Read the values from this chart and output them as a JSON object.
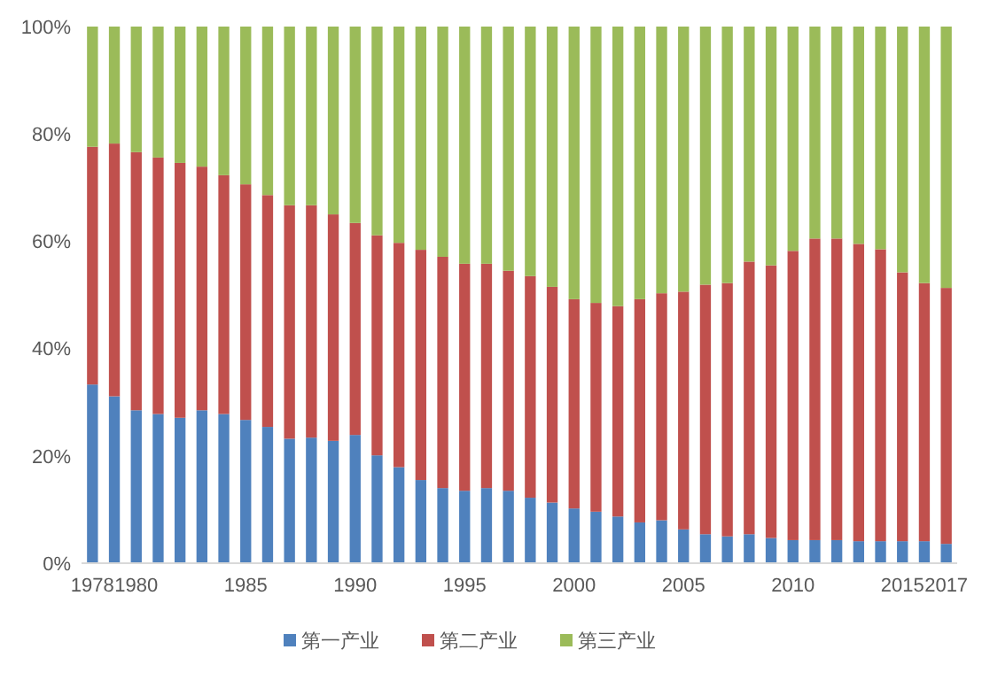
{
  "chart_data": {
    "type": "bar",
    "stacked": true,
    "categories": [
      "1978",
      null,
      "1980",
      null,
      null,
      null,
      null,
      "1985",
      null,
      null,
      null,
      null,
      "1990",
      null,
      null,
      null,
      null,
      "1995",
      null,
      null,
      null,
      null,
      "2000",
      null,
      null,
      null,
      null,
      "2005",
      null,
      null,
      null,
      null,
      "2010",
      null,
      null,
      null,
      null,
      "2015",
      null,
      "2017"
    ],
    "series": [
      {
        "name": "第一产业",
        "color": "#4f81bd",
        "values": [
          33.3,
          31.1,
          28.5,
          27.8,
          27.1,
          28.5,
          27.8,
          26.7,
          25.4,
          23.2,
          23.4,
          22.8,
          23.9,
          20.1,
          17.9,
          15.5,
          14.0,
          13.5,
          14.0,
          13.5,
          12.2,
          11.3,
          10.2,
          9.6,
          8.7,
          7.6,
          8.0,
          6.3,
          5.4,
          5.0,
          5.4,
          4.7,
          4.3,
          4.3,
          4.3,
          4.1,
          4.1,
          4.1,
          4.1,
          3.6
        ]
      },
      {
        "name": "第二产业",
        "color": "#c0504d",
        "values": [
          44.3,
          47.1,
          48.1,
          47.8,
          47.5,
          45.4,
          44.5,
          43.9,
          43.2,
          43.5,
          43.3,
          42.2,
          39.5,
          41.0,
          41.8,
          42.9,
          43.1,
          42.3,
          41.8,
          41.0,
          41.3,
          40.2,
          39.0,
          38.9,
          39.2,
          41.6,
          42.3,
          44.3,
          46.5,
          47.2,
          50.8,
          50.8,
          53.9,
          56.2,
          56.2,
          55.4,
          54.4,
          50.1,
          48.1,
          47.7
        ]
      },
      {
        "name": "第三产业",
        "color": "#9bbb59",
        "values": [
          22.4,
          21.8,
          23.4,
          24.4,
          25.4,
          26.1,
          27.7,
          29.4,
          31.4,
          33.3,
          33.3,
          35.0,
          36.6,
          38.9,
          40.3,
          41.6,
          42.9,
          44.2,
          44.2,
          45.5,
          46.5,
          48.5,
          50.8,
          51.5,
          52.1,
          50.8,
          49.7,
          49.4,
          48.1,
          47.8,
          43.8,
          44.5,
          41.8,
          39.5,
          39.5,
          40.5,
          41.5,
          45.8,
          47.8,
          48.7
        ]
      }
    ],
    "ylim": [
      0,
      100
    ],
    "yticks": [
      {
        "value": 0,
        "label": "0%"
      },
      {
        "value": 20,
        "label": "20%"
      },
      {
        "value": 40,
        "label": "40%"
      },
      {
        "value": 60,
        "label": "60%"
      },
      {
        "value": 80,
        "label": "80%"
      },
      {
        "value": 100,
        "label": "100%"
      }
    ],
    "grid": false,
    "legend": "bottom"
  }
}
